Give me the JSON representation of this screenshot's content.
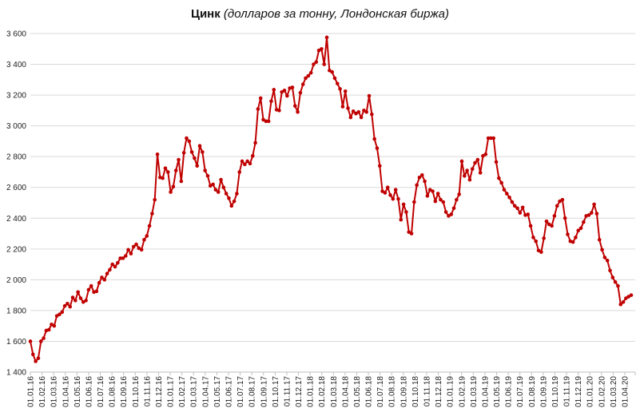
{
  "title": {
    "main": "Цинк",
    "subtitle": "(долларов за тонну, Лондонская биржа)"
  },
  "chart_data": {
    "type": "line",
    "title": "Цинк (долларов за тонну, Лондонская биржа)",
    "xlabel": "",
    "ylabel": "",
    "frequency": "weekly",
    "ylim": [
      1400,
      3600
    ],
    "grid": "horizontal",
    "legend": "none",
    "line_color": "#C00000",
    "marker": "circle",
    "grid_color": "#D9D9D9",
    "axis_color": "#BFBFBF",
    "label_color": "#212121",
    "y_ticks": [
      1400,
      1600,
      1800,
      2000,
      2200,
      2400,
      2600,
      2800,
      3000,
      3200,
      3400,
      3600
    ],
    "y_tick_labels": [
      "1 400",
      "1 600",
      "1 800",
      "2 000",
      "2 200",
      "2 400",
      "2 600",
      "2 800",
      "3 000",
      "3 200",
      "3 400",
      "3 600"
    ],
    "x_tick_labels": [
      "01.01.16",
      "01.02.16",
      "01.03.16",
      "01.04.16",
      "01.05.16",
      "01.06.16",
      "01.07.16",
      "01.08.16",
      "01.09.16",
      "01.10.16",
      "01.11.16",
      "01.12.16",
      "01.01.17",
      "01.02.17",
      "01.03.17",
      "01.04.17",
      "01.05.17",
      "01.06.17",
      "01.07.17",
      "01.08.17",
      "01.09.17",
      "01.10.17",
      "01.11.17",
      "01.12.17",
      "01.01.18",
      "01.02.18",
      "01.03.18",
      "01.04.18",
      "01.05.18",
      "01.06.18",
      "01.07.18",
      "01.08.18",
      "01.09.18",
      "01.10.18",
      "01.11.18",
      "01.12.18",
      "01.01.19",
      "01.02.19",
      "01.03.19",
      "01.04.19",
      "01.05.19",
      "01.06.19",
      "01.07.19",
      "01.08.19",
      "01.09.19",
      "01.10.19",
      "01.11.19",
      "01.12.19",
      "01.01.20",
      "01.02.20",
      "01.03.20",
      "01.04.20"
    ],
    "values": [
      1600,
      1515,
      1470,
      1490,
      1600,
      1620,
      1670,
      1675,
      1710,
      1700,
      1765,
      1775,
      1790,
      1830,
      1845,
      1825,
      1885,
      1865,
      1920,
      1880,
      1855,
      1865,
      1935,
      1960,
      1920,
      1925,
      1980,
      2015,
      2000,
      2040,
      2065,
      2100,
      2085,
      2110,
      2140,
      2140,
      2155,
      2195,
      2170,
      2215,
      2230,
      2205,
      2195,
      2260,
      2285,
      2350,
      2430,
      2520,
      2815,
      2665,
      2660,
      2725,
      2700,
      2570,
      2605,
      2710,
      2780,
      2640,
      2825,
      2920,
      2900,
      2830,
      2790,
      2740,
      2870,
      2830,
      2710,
      2675,
      2610,
      2620,
      2585,
      2570,
      2650,
      2600,
      2560,
      2530,
      2480,
      2510,
      2560,
      2700,
      2770,
      2750,
      2770,
      2755,
      2805,
      2890,
      3110,
      3180,
      3040,
      3030,
      3030,
      3160,
      3235,
      3105,
      3100,
      3220,
      3230,
      3195,
      3245,
      3250,
      3130,
      3090,
      3215,
      3270,
      3310,
      3325,
      3345,
      3400,
      3415,
      3490,
      3500,
      3400,
      3575,
      3360,
      3350,
      3310,
      3275,
      3240,
      3125,
      3225,
      3115,
      3055,
      3095,
      3080,
      3090,
      3055,
      3100,
      3090,
      3195,
      3075,
      2915,
      2855,
      2740,
      2575,
      2565,
      2600,
      2550,
      2525,
      2585,
      2525,
      2390,
      2490,
      2440,
      2310,
      2300,
      2505,
      2615,
      2665,
      2680,
      2640,
      2545,
      2585,
      2575,
      2510,
      2560,
      2520,
      2505,
      2440,
      2415,
      2425,
      2465,
      2520,
      2555,
      2770,
      2675,
      2710,
      2650,
      2720,
      2760,
      2780,
      2695,
      2805,
      2815,
      2920,
      2920,
      2920,
      2765,
      2660,
      2630,
      2585,
      2560,
      2535,
      2505,
      2480,
      2465,
      2435,
      2470,
      2420,
      2425,
      2350,
      2275,
      2250,
      2190,
      2180,
      2270,
      2380,
      2360,
      2350,
      2415,
      2480,
      2510,
      2520,
      2400,
      2295,
      2250,
      2245,
      2275,
      2320,
      2335,
      2375,
      2415,
      2420,
      2435,
      2490,
      2430,
      2260,
      2195,
      2145,
      2125,
      2060,
      2015,
      1985,
      1960,
      1840,
      1855,
      1880,
      1890,
      1900
    ]
  }
}
